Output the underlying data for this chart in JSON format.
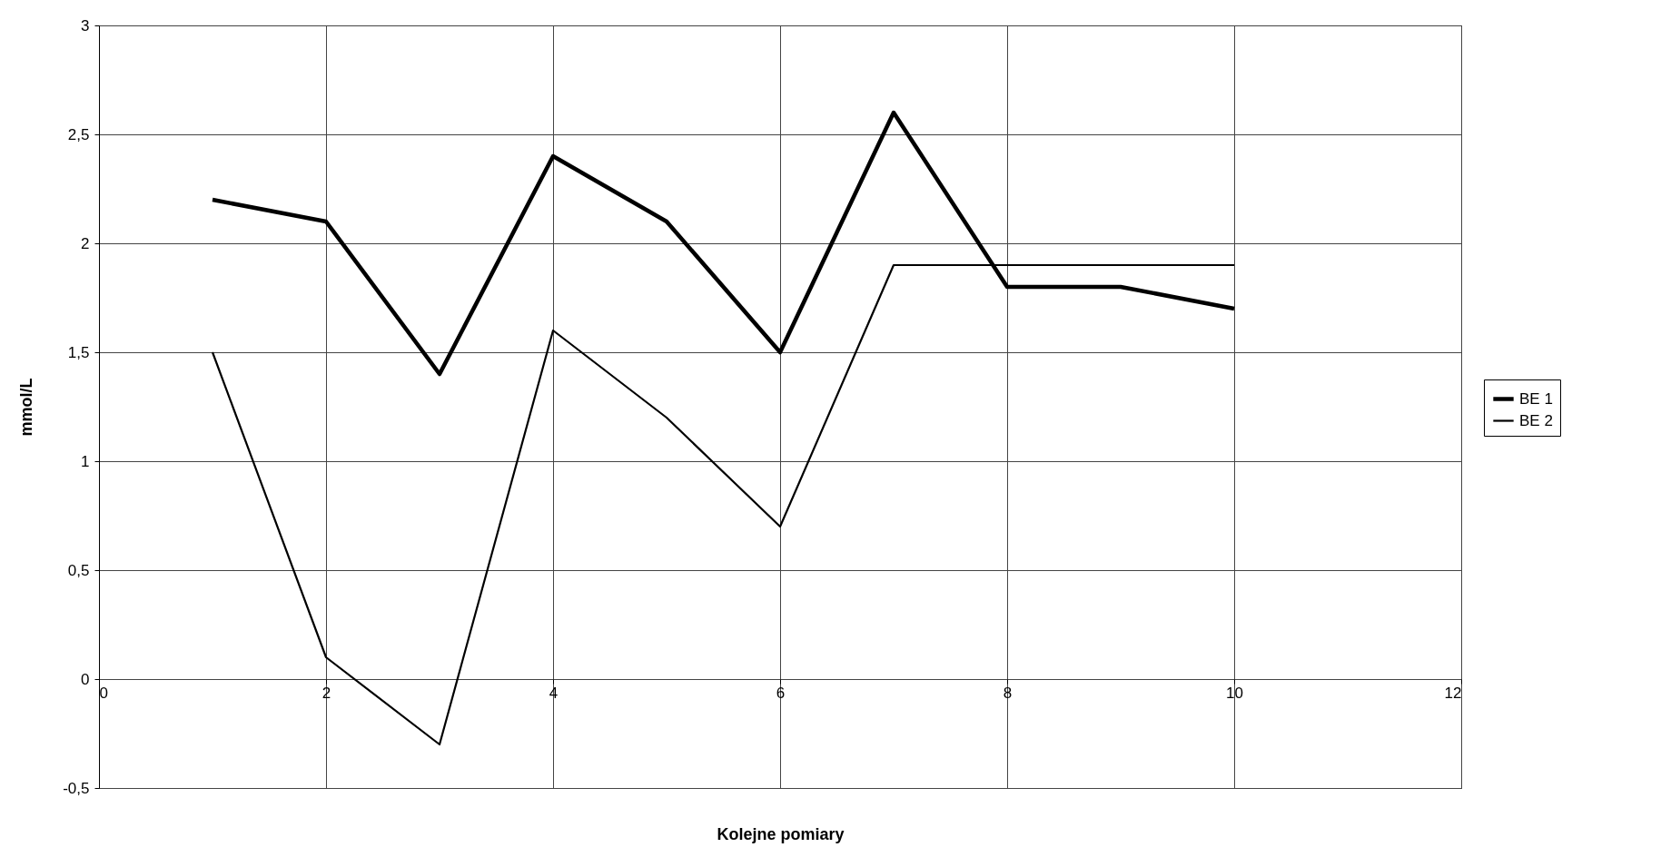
{
  "chart_data": {
    "type": "line",
    "xlabel": "Kolejne pomiary",
    "ylabel": "mmol/L",
    "x": [
      1,
      2,
      3,
      4,
      5,
      6,
      7,
      8,
      9,
      10
    ],
    "series": [
      {
        "name": "BE 1",
        "color": "#000000",
        "values": [
          2.2,
          2.1,
          1.4,
          2.4,
          2.1,
          1.5,
          2.6,
          1.8,
          1.8,
          1.7
        ]
      },
      {
        "name": "BE 2",
        "color": "#000000",
        "values": [
          1.5,
          0.1,
          -0.3,
          1.6,
          1.2,
          0.7,
          1.9,
          1.9,
          1.9,
          1.9
        ]
      }
    ],
    "xlim": [
      0,
      12
    ],
    "xticks": [
      0,
      2,
      4,
      6,
      8,
      10,
      12
    ],
    "ylim": [
      -0.5,
      3
    ],
    "yticks": [
      {
        "value": -0.5,
        "label": "-0,5"
      },
      0,
      {
        "value": 0.5,
        "label": "0,5"
      },
      1,
      {
        "value": 1.5,
        "label": "1,5"
      },
      2,
      {
        "value": 2.5,
        "label": "2,5"
      },
      3
    ],
    "grid": true,
    "legend": "right",
    "marker": "none",
    "line_style": "solid"
  }
}
